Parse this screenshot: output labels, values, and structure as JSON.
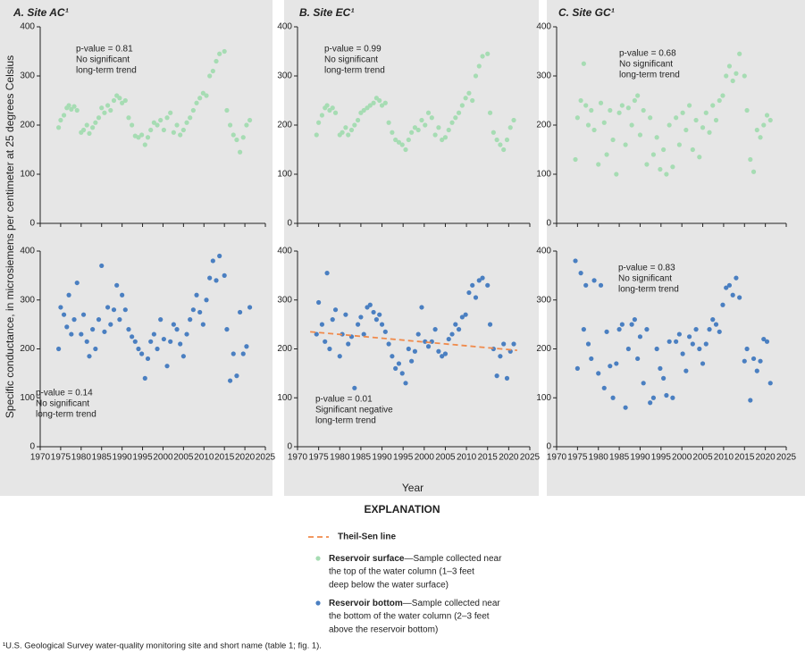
{
  "chart_data": [
    {
      "type": "scatter",
      "title": "A. Site AC¹",
      "ylabel": "Specific conductance, in microsiemens per centimeter at 25 degrees Celsius",
      "annotation": [
        "p-value = 0.81",
        "No significant",
        "long-term trend"
      ],
      "xlim": [
        1970,
        2025
      ],
      "xticks": [
        1970,
        1975,
        1980,
        1985,
        1990,
        1995,
        2000,
        2005,
        2010,
        2015,
        2020,
        2025
      ],
      "ylim": [
        0,
        400
      ],
      "yticks": [
        0,
        100,
        200,
        300,
        400
      ],
      "x": [
        1974.5,
        1975,
        1975.8,
        1976.5,
        1977,
        1977.6,
        1978.3,
        1979,
        1980,
        1980.6,
        1981.4,
        1982,
        1982.8,
        1983.5,
        1984.3,
        1985,
        1985.7,
        1986.5,
        1987.2,
        1988,
        1988.7,
        1989.4,
        1990,
        1990.8,
        1991.6,
        1992.4,
        1993.2,
        1994,
        1994.8,
        1995.6,
        1996.3,
        1997,
        1997.8,
        1998.6,
        1999.4,
        2000.2,
        2001,
        2001.8,
        2002.6,
        2003.4,
        2004.2,
        2005,
        2005.8,
        2006.6,
        2007.4,
        2008.2,
        2009,
        2009.8,
        2010.6,
        2011.4,
        2012.2,
        2013,
        2013.8,
        2015,
        2015.6,
        2016.4,
        2017.2,
        2018,
        2018.8,
        2019.6,
        2020.4,
        2021.2
      ],
      "series": [
        {
          "name": "Reservoir surface",
          "color": "#a6dcb3",
          "values": [
            195,
            210,
            220,
            235,
            240,
            232,
            238,
            230,
            185,
            190,
            200,
            183,
            195,
            205,
            215,
            235,
            225,
            240,
            230,
            250,
            260,
            255,
            245,
            250,
            215,
            200,
            178,
            175,
            180,
            160,
            175,
            190,
            205,
            200,
            210,
            190,
            215,
            225,
            185,
            200,
            180,
            190,
            205,
            215,
            230,
            245,
            255,
            265,
            260,
            300,
            310,
            330,
            345,
            350,
            230,
            200,
            180,
            170,
            145,
            175,
            200,
            210
          ]
        }
      ]
    },
    {
      "type": "scatter",
      "title": "B. Site EC¹",
      "annotation": [
        "p-value = 0.99",
        "No significant",
        "long-term trend"
      ],
      "xlim": [
        1970,
        2025
      ],
      "xticks": [
        1970,
        1975,
        1980,
        1985,
        1990,
        1995,
        2000,
        2005,
        2010,
        2015,
        2020,
        2025
      ],
      "ylim": [
        0,
        400
      ],
      "yticks": [
        0,
        100,
        200,
        300,
        400
      ],
      "x": [
        1974.5,
        1975,
        1975.8,
        1976.5,
        1977,
        1977.6,
        1978.3,
        1979,
        1980,
        1980.6,
        1981.4,
        1982,
        1982.8,
        1983.5,
        1984.3,
        1985,
        1985.7,
        1986.5,
        1987.2,
        1988,
        1988.7,
        1989.4,
        1990,
        1990.8,
        1991.6,
        1992.4,
        1993.2,
        1994,
        1994.8,
        1995.6,
        1996.3,
        1997,
        1997.8,
        1998.6,
        1999.4,
        2000.2,
        2001,
        2001.8,
        2002.6,
        2003.4,
        2004.2,
        2005,
        2005.8,
        2006.6,
        2007.4,
        2008.2,
        2009,
        2009.8,
        2010.6,
        2011.4,
        2012.2,
        2013,
        2013.8,
        2015,
        2015.6,
        2016.4,
        2017.2,
        2018,
        2018.8,
        2019.6,
        2020.4,
        2021.2
      ],
      "series": [
        {
          "name": "Reservoir surface",
          "color": "#a6dcb3",
          "values": [
            180,
            205,
            220,
            235,
            240,
            230,
            235,
            225,
            180,
            185,
            195,
            180,
            190,
            200,
            210,
            225,
            230,
            235,
            240,
            245,
            255,
            250,
            240,
            245,
            205,
            185,
            170,
            165,
            160,
            150,
            170,
            185,
            195,
            190,
            210,
            200,
            225,
            215,
            180,
            195,
            170,
            175,
            190,
            205,
            215,
            225,
            240,
            255,
            265,
            250,
            300,
            320,
            340,
            345,
            225,
            185,
            170,
            160,
            150,
            170,
            195,
            210
          ]
        }
      ]
    },
    {
      "type": "scatter",
      "title": "C. Site GC¹",
      "annotation": [
        "p-value = 0.68",
        "No significant",
        "long-term trend"
      ],
      "xlim": [
        1970,
        2025
      ],
      "xticks": [
        1970,
        1975,
        1980,
        1985,
        1990,
        1995,
        2000,
        2005,
        2010,
        2015,
        2020,
        2025
      ],
      "ylim": [
        0,
        400
      ],
      "yticks": [
        0,
        100,
        200,
        300,
        400
      ],
      "x": [
        1974.5,
        1975,
        1975.8,
        1976.5,
        1977,
        1977.6,
        1978.3,
        1979,
        1980,
        1980.6,
        1981.4,
        1982,
        1982.8,
        1983.5,
        1984.3,
        1985,
        1985.7,
        1986.5,
        1987.2,
        1988,
        1988.7,
        1989.4,
        1990,
        1990.8,
        1991.6,
        1992.4,
        1993.2,
        1994,
        1994.8,
        1995.6,
        1996.3,
        1997,
        1997.8,
        1998.6,
        1999.4,
        2000.2,
        2001,
        2001.8,
        2002.6,
        2003.4,
        2004.2,
        2005,
        2005.8,
        2006.6,
        2007.4,
        2008.2,
        2009,
        2009.8,
        2010.6,
        2011.4,
        2012.2,
        2013,
        2013.8,
        2015,
        2015.6,
        2016.4,
        2017.2,
        2018,
        2018.8,
        2019.6,
        2020.4,
        2021.2
      ],
      "series": [
        {
          "name": "Reservoir surface",
          "color": "#a6dcb3",
          "values": [
            130,
            215,
            250,
            325,
            240,
            200,
            230,
            190,
            120,
            245,
            205,
            140,
            230,
            170,
            100,
            225,
            240,
            160,
            235,
            200,
            250,
            260,
            180,
            230,
            120,
            215,
            140,
            175,
            110,
            150,
            100,
            200,
            115,
            215,
            160,
            225,
            190,
            240,
            150,
            210,
            135,
            195,
            225,
            185,
            240,
            210,
            250,
            260,
            300,
            320,
            290,
            305,
            345,
            300,
            230,
            130,
            105,
            190,
            175,
            200,
            220,
            210
          ]
        }
      ]
    },
    {
      "type": "scatter",
      "annotation": [
        "p-value = 0.14",
        "No significant",
        "long-term trend"
      ],
      "xlim": [
        1970,
        2025
      ],
      "xticks": [
        1970,
        1975,
        1980,
        1985,
        1990,
        1995,
        2000,
        2005,
        2010,
        2015,
        2020,
        2025
      ],
      "ylim": [
        0,
        400
      ],
      "yticks": [
        0,
        100,
        200,
        300,
        400
      ],
      "x": [
        1974.5,
        1975,
        1975.8,
        1976.5,
        1977,
        1977.6,
        1978.3,
        1979,
        1980,
        1980.6,
        1981.4,
        1982,
        1982.8,
        1983.5,
        1984.3,
        1985,
        1985.7,
        1986.5,
        1987.2,
        1988,
        1988.7,
        1989.4,
        1990,
        1990.8,
        1991.6,
        1992.4,
        1993.2,
        1994,
        1994.8,
        1995.6,
        1996.3,
        1997,
        1997.8,
        1998.6,
        1999.4,
        2000.2,
        2001,
        2001.8,
        2002.6,
        2003.4,
        2004.2,
        2005,
        2005.8,
        2006.6,
        2007.4,
        2008.2,
        2009,
        2009.8,
        2010.6,
        2011.4,
        2012.2,
        2013,
        2013.8,
        2015,
        2015.6,
        2016.4,
        2017.2,
        2018,
        2018.8,
        2019.6,
        2020.4,
        2021.2
      ],
      "series": [
        {
          "name": "Reservoir bottom",
          "color": "#4a7fc1",
          "values": [
            200,
            285,
            270,
            245,
            310,
            230,
            260,
            335,
            230,
            270,
            215,
            185,
            240,
            200,
            260,
            370,
            235,
            285,
            250,
            280,
            330,
            260,
            310,
            280,
            240,
            225,
            215,
            200,
            190,
            140,
            180,
            215,
            230,
            200,
            260,
            220,
            165,
            215,
            250,
            240,
            210,
            185,
            230,
            260,
            280,
            310,
            275,
            250,
            300,
            345,
            380,
            340,
            390,
            350,
            240,
            135,
            190,
            145,
            275,
            190,
            205,
            285
          ]
        }
      ]
    },
    {
      "type": "scatter",
      "xlabel": "Year",
      "annotation": [
        "p-value = 0.01",
        "Significant negative",
        "long-term trend"
      ],
      "xlim": [
        1970,
        2025
      ],
      "xticks": [
        1970,
        1975,
        1980,
        1985,
        1990,
        1995,
        2000,
        2005,
        2010,
        2015,
        2020,
        2025
      ],
      "ylim": [
        0,
        400
      ],
      "yticks": [
        0,
        100,
        200,
        300,
        400
      ],
      "x": [
        1974.5,
        1975,
        1975.8,
        1976.5,
        1977,
        1977.6,
        1978.3,
        1979,
        1980,
        1980.6,
        1981.4,
        1982,
        1982.8,
        1983.5,
        1984.3,
        1985,
        1985.7,
        1986.5,
        1987.2,
        1988,
        1988.7,
        1989.4,
        1990,
        1990.8,
        1991.6,
        1992.4,
        1993.2,
        1994,
        1994.8,
        1995.6,
        1996.3,
        1997,
        1997.8,
        1998.6,
        1999.4,
        2000.2,
        2001,
        2001.8,
        2002.6,
        2003.4,
        2004.2,
        2005,
        2005.8,
        2006.6,
        2007.4,
        2008.2,
        2009,
        2009.8,
        2010.6,
        2011.4,
        2012.2,
        2013,
        2013.8,
        2015,
        2015.6,
        2016.4,
        2017.2,
        2018,
        2018.8,
        2019.6,
        2020.4,
        2021.2
      ],
      "series": [
        {
          "name": "Reservoir bottom",
          "color": "#4a7fc1",
          "values": [
            230,
            295,
            250,
            215,
            355,
            200,
            260,
            280,
            185,
            230,
            270,
            210,
            225,
            120,
            250,
            265,
            230,
            285,
            290,
            275,
            260,
            270,
            250,
            235,
            210,
            185,
            160,
            170,
            150,
            130,
            200,
            175,
            195,
            230,
            285,
            215,
            205,
            215,
            240,
            195,
            185,
            190,
            220,
            230,
            250,
            240,
            265,
            270,
            315,
            330,
            305,
            340,
            345,
            330,
            250,
            200,
            145,
            185,
            210,
            140,
            195,
            210
          ]
        }
      ],
      "trend": {
        "name": "Theil-Sen line",
        "color": "#f08a4b",
        "x": [
          1973,
          2022
        ],
        "values": [
          235,
          197
        ]
      }
    },
    {
      "type": "scatter",
      "annotation": [
        "p-value = 0.83",
        "No significant",
        "long-term trend"
      ],
      "xlim": [
        1970,
        2025
      ],
      "xticks": [
        1970,
        1975,
        1980,
        1985,
        1990,
        1995,
        2000,
        2005,
        2010,
        2015,
        2020,
        2025
      ],
      "ylim": [
        0,
        400
      ],
      "yticks": [
        0,
        100,
        200,
        300,
        400
      ],
      "x": [
        1974.5,
        1975,
        1975.8,
        1976.5,
        1977,
        1977.6,
        1978.3,
        1979,
        1980,
        1980.6,
        1981.4,
        1982,
        1982.8,
        1983.5,
        1984.3,
        1985,
        1985.7,
        1986.5,
        1987.2,
        1988,
        1988.7,
        1989.4,
        1990,
        1990.8,
        1991.6,
        1992.4,
        1993.2,
        1994,
        1994.8,
        1995.6,
        1996.3,
        1997,
        1997.8,
        1998.6,
        1999.4,
        2000.2,
        2001,
        2001.8,
        2002.6,
        2003.4,
        2004.2,
        2005,
        2005.8,
        2006.6,
        2007.4,
        2008.2,
        2009,
        2009.8,
        2010.6,
        2011.4,
        2012.2,
        2013,
        2013.8,
        2015,
        2015.6,
        2016.4,
        2017.2,
        2018,
        2018.8,
        2019.6,
        2020.4,
        2021.2
      ],
      "series": [
        {
          "name": "Reservoir bottom",
          "color": "#4a7fc1",
          "values": [
            380,
            160,
            355,
            240,
            330,
            210,
            180,
            340,
            150,
            330,
            120,
            235,
            165,
            100,
            170,
            240,
            250,
            80,
            200,
            250,
            260,
            180,
            225,
            130,
            240,
            90,
            100,
            200,
            160,
            140,
            105,
            215,
            100,
            215,
            230,
            190,
            155,
            225,
            210,
            240,
            200,
            170,
            210,
            240,
            260,
            250,
            235,
            290,
            325,
            330,
            310,
            345,
            305,
            175,
            200,
            95,
            180,
            155,
            175,
            220,
            215,
            130
          ]
        }
      ]
    }
  ],
  "explanation": {
    "title": "EXPLANATION",
    "surface_description": [
      "—Sample collected near",
      "the top of the water column (1–3 feet",
      "deep below the water surface)"
    ],
    "bottom_description": [
      "—Sample collected near",
      "the bottom of the water column (2–3 feet",
      "above the reservoir bottom)"
    ]
  },
  "footnote": "¹U.S. Geological Survey water-quality monitoring site and short name (table 1; fig. 1)."
}
